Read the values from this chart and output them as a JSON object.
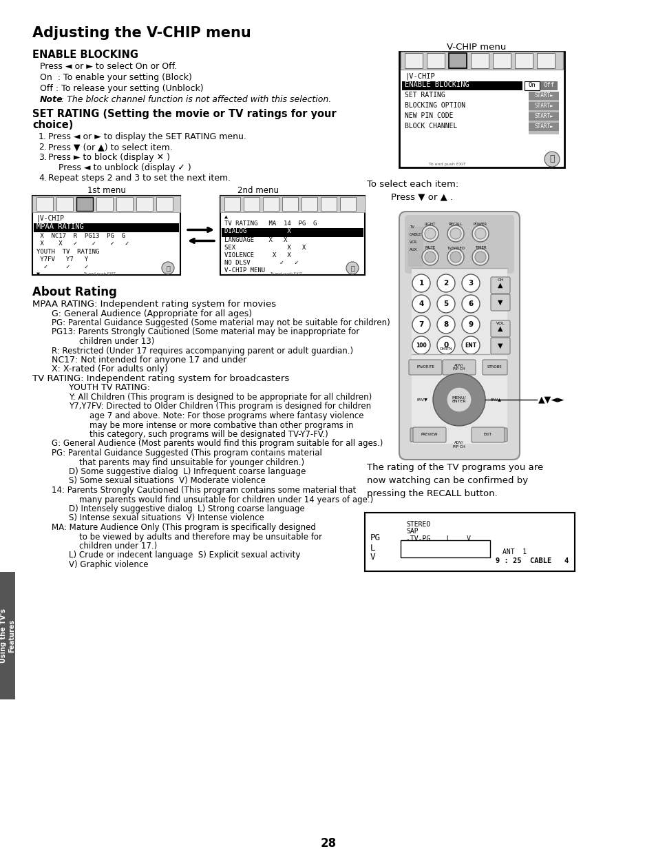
{
  "title": "Adjusting the V-CHIP menu",
  "bg_color": "#ffffff",
  "text_color": "#000000",
  "page_number": "28",
  "tab_text": "Using the TV's\nFeatures",
  "enable_blocking_heading": "ENABLE BLOCKING",
  "enable_blocking_lines": [
    "Press ◄ or ► to select On or Off.",
    "On  : To enable your setting (Block)",
    "Off : To release your setting (Unblock)"
  ],
  "note_bold": "Note",
  "note_italic": ": The block channel function is not affected with this selection.",
  "set_rating_heading1": "SET RATING (Setting the movie or TV ratings for your",
  "set_rating_heading2": "choice)",
  "steps": [
    "Press ◄ or ► to display the SET RATING menu.",
    "Press ▼ (or ▲) to select item.",
    "Press ► to block (display ✕ )",
    "Press ◄ to unblock (display ✓ )",
    "Repeat steps 2 and 3 to set the next item."
  ],
  "menu1_label": "1st menu",
  "menu2_label": "2nd menu",
  "about_heading": "About Rating",
  "about_lines": [
    {
      "indent": 0,
      "text": "MPAA RATING: Independent rating system for movies",
      "size": 9.5,
      "bold": false
    },
    {
      "indent": 1,
      "text": "G: General Audience (Appropriate for all ages)",
      "size": 9.0,
      "bold": false
    },
    {
      "indent": 1,
      "text": "PG: Parental Guidance Suggested (Some material may not be suitable for children)",
      "size": 8.5,
      "bold": false
    },
    {
      "indent": 1,
      "text": "PG13: Parents Strongly Cautioned (Some material may be inappropriate for",
      "size": 8.5,
      "bold": false
    },
    {
      "indent": 3,
      "text": "children under 13)",
      "size": 8.5,
      "bold": false
    },
    {
      "indent": 1,
      "text": "R: Restricted (Under 17 requires accompanying parent or adult guardian.)",
      "size": 8.5,
      "bold": false
    },
    {
      "indent": 1,
      "text": "NC17: Not intended for anyone 17 and under",
      "size": 9.0,
      "bold": false
    },
    {
      "indent": 1,
      "text": "X: X-rated (For adults only)",
      "size": 9.0,
      "bold": false
    },
    {
      "indent": 0,
      "text": "TV RATING: Independent rating system for broadcasters",
      "size": 9.5,
      "bold": false
    },
    {
      "indent": 2,
      "text": "YOUTH TV RATING:",
      "size": 9.0,
      "bold": false
    },
    {
      "indent": 2,
      "text": "Y: All Children (This program is designed to be appropriate for all children)",
      "size": 8.5,
      "bold": false
    },
    {
      "indent": 2,
      "text": "Y7,Y7FV: Directed to Older Children (This program is designed for children",
      "size": 8.5,
      "bold": false
    },
    {
      "indent": 4,
      "text": "age 7 and above. Note: For those programs where fantasy violence",
      "size": 8.5,
      "bold": false
    },
    {
      "indent": 4,
      "text": "may be more intense or more combative than other programs in",
      "size": 8.5,
      "bold": false
    },
    {
      "indent": 4,
      "text": "this category, such programs will be designated TV-Y7-FV.)",
      "size": 8.5,
      "bold": false
    },
    {
      "indent": 1,
      "text": "G: General Audience (Most parents would find this program suitable for all ages.)",
      "size": 8.5,
      "bold": false
    },
    {
      "indent": 1,
      "text": "PG: Parental Guidance Suggested (This program contains material",
      "size": 8.5,
      "bold": false
    },
    {
      "indent": 3,
      "text": "that parents may find unsuitable for younger children.)",
      "size": 8.5,
      "bold": false
    },
    {
      "indent": 2,
      "text": "D) Some suggestive dialog  L) Infrequent coarse language",
      "size": 8.5,
      "bold": false
    },
    {
      "indent": 2,
      "text": "S) Some sexual situations  V) Moderate violence",
      "size": 8.5,
      "bold": false
    },
    {
      "indent": 1,
      "text": "14: Parents Strongly Cautioned (This program contains some material that",
      "size": 8.5,
      "bold": false
    },
    {
      "indent": 3,
      "text": "many parents would find unsuitable for children under 14 years of age.)",
      "size": 8.5,
      "bold": false
    },
    {
      "indent": 2,
      "text": "D) Intensely suggestive dialog  L) Strong coarse language",
      "size": 8.5,
      "bold": false
    },
    {
      "indent": 2,
      "text": "S) Intense sexual situations  V) Intense violence",
      "size": 8.5,
      "bold": false
    },
    {
      "indent": 1,
      "text": "MA: Mature Audience Only (This program is specifically designed",
      "size": 8.5,
      "bold": false
    },
    {
      "indent": 3,
      "text": "to be viewed by adults and therefore may be unsuitable for",
      "size": 8.5,
      "bold": false
    },
    {
      "indent": 3,
      "text": "children under 17.)",
      "size": 8.5,
      "bold": false
    },
    {
      "indent": 2,
      "text": "L) Crude or indecent language  S) Explicit sexual activity",
      "size": 8.5,
      "bold": false
    },
    {
      "indent": 2,
      "text": "V) Graphic violence",
      "size": 8.5,
      "bold": false
    }
  ],
  "vchip_menu_label": "V-CHIP menu",
  "select_item_text": "To select each item:",
  "press_text": "Press ▼ or ▲ .",
  "recall_text": "The rating of the TV programs you are\nnow watching can be confirmed by\npressing the RECALL button.",
  "page_num": "28"
}
